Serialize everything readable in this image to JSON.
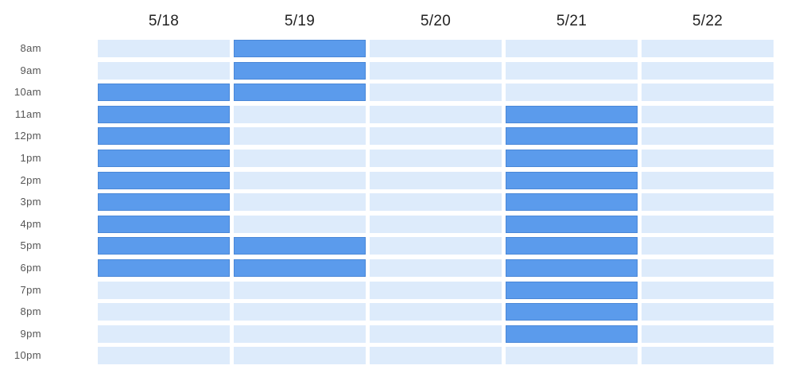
{
  "days": [
    "5/18",
    "5/19",
    "5/20",
    "5/21",
    "5/22"
  ],
  "times": [
    "8am",
    "9am",
    "10am",
    "11am",
    "12pm",
    "1pm",
    "2pm",
    "3pm",
    "4pm",
    "5pm",
    "6pm",
    "7pm",
    "8pm",
    "9pm",
    "10pm"
  ],
  "busy": [
    [
      false,
      true,
      false,
      false,
      false
    ],
    [
      false,
      true,
      false,
      false,
      false
    ],
    [
      true,
      true,
      false,
      false,
      false
    ],
    [
      true,
      false,
      false,
      true,
      false
    ],
    [
      true,
      false,
      false,
      true,
      false
    ],
    [
      true,
      false,
      false,
      true,
      false
    ],
    [
      true,
      false,
      false,
      true,
      false
    ],
    [
      true,
      false,
      false,
      true,
      false
    ],
    [
      true,
      false,
      false,
      true,
      false
    ],
    [
      true,
      true,
      false,
      true,
      false
    ],
    [
      true,
      true,
      false,
      true,
      false
    ],
    [
      false,
      false,
      false,
      true,
      false
    ],
    [
      false,
      false,
      false,
      true,
      false
    ],
    [
      false,
      false,
      false,
      true,
      false
    ],
    [
      false,
      false,
      false,
      false,
      false
    ]
  ],
  "colors": {
    "available": "#ddebfb",
    "busy": "#5b9bec"
  }
}
